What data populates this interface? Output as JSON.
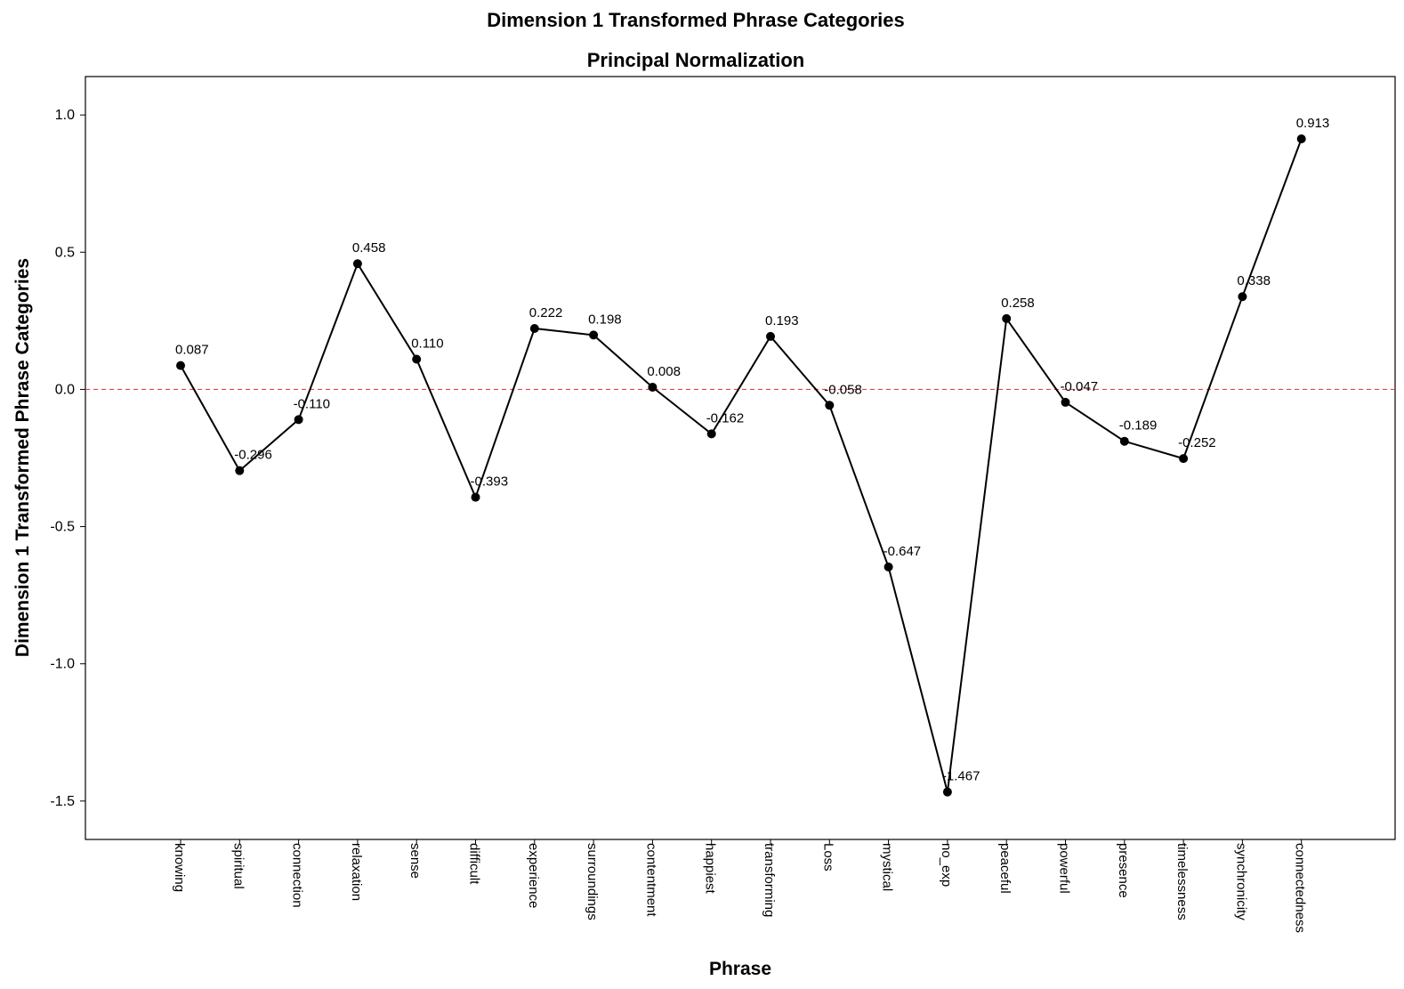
{
  "chart_data": {
    "type": "line",
    "title": "Dimension 1 Transformed Phrase Categories",
    "subtitle": "Principal Normalization",
    "xlabel": "Phrase",
    "ylabel": "Dimension 1 Transformed Phrase Categories",
    "categories": [
      "knowing",
      "spiritual",
      "connection",
      "relaxation",
      "sense",
      "difficult",
      "experience",
      "surroundings",
      "contentment",
      "happiest",
      "transforming",
      "Loss",
      "mystical",
      "no_exp",
      "peaceful",
      "powerful",
      "presence",
      "timelessness",
      "synchronicity",
      "connectedness"
    ],
    "values": [
      0.087,
      -0.296,
      -0.11,
      0.458,
      0.11,
      -0.393,
      0.222,
      0.198,
      0.008,
      -0.162,
      0.193,
      -0.058,
      -0.647,
      -1.467,
      0.258,
      -0.047,
      -0.189,
      -0.252,
      0.338,
      0.913
    ],
    "data_labels": [
      "0.087",
      "-0.296",
      "-0.110",
      "0.458",
      "0.110",
      "-0.393",
      "0.222",
      "0.198",
      "0.008",
      "-0.162",
      "0.193",
      "-0.058",
      "-0.647",
      "-1.467",
      "0.258",
      "-0.047",
      "-0.189",
      "-0.252",
      "0.338",
      "0.913"
    ],
    "y_ticks": [
      1.0,
      0.5,
      0.0,
      -0.5,
      -1.0,
      -1.5
    ],
    "y_tick_labels": [
      "1.0",
      "0.5",
      "0.0",
      "-0.5",
      "-1.0",
      "-1.5"
    ],
    "ylim": [
      -1.64,
      1.14
    ],
    "reference_line": {
      "y": 0,
      "style": "dashed"
    },
    "grid": false,
    "legend": "none",
    "colors": {
      "line": "#000000",
      "marker": "#000000",
      "reference": "#e8464b",
      "frame": "#000000"
    }
  }
}
